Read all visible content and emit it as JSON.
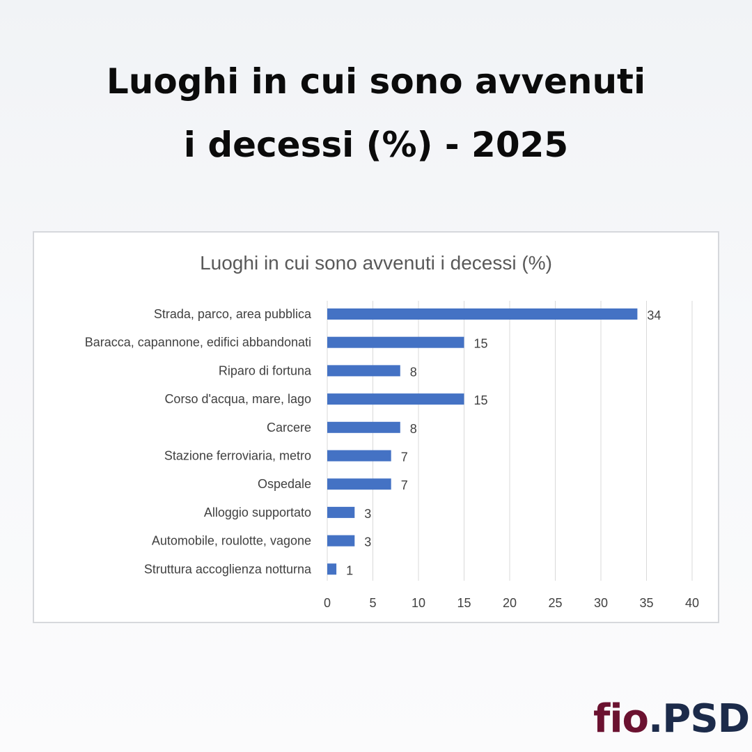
{
  "header": {
    "title_line1": "Luoghi in cui sono avvenuti",
    "title_line2": "i decessi (%) - 2025"
  },
  "chart_data": {
    "type": "bar",
    "orientation": "horizontal",
    "title": "Luoghi in cui sono avvenuti i decessi (%)",
    "categories": [
      "Strada, parco, area pubblica",
      "Baracca, capannone, edifici abbandonati",
      "Riparo di fortuna",
      "Corso d'acqua, mare, lago",
      "Carcere",
      "Stazione ferroviaria, metro",
      "Ospedale",
      "Alloggio supportato",
      "Automobile, roulotte, vagone",
      "Struttura accoglienza notturna"
    ],
    "values": [
      34,
      15,
      8,
      15,
      8,
      7,
      7,
      3,
      3,
      1
    ],
    "value_labels": [
      "34",
      "15",
      "8",
      "15",
      "8",
      "7",
      "7",
      "3",
      "3",
      "1"
    ],
    "xlim": [
      0,
      40
    ],
    "xticks": [
      0,
      5,
      10,
      15,
      20,
      25,
      30,
      35,
      40
    ],
    "grid": true,
    "bar_color": "#4472c4"
  },
  "logo": {
    "part_a": "fio",
    "part_b": ".PSD",
    "colors": {
      "primary": "#6b1230",
      "secondary": "#1c2b4a"
    }
  }
}
